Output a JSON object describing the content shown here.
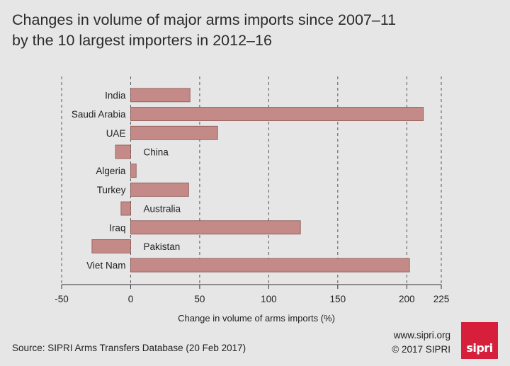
{
  "title_line1": "Changes in volume of major arms imports since 2007–11",
  "title_line2": "by the 10 largest importers in 2012–16",
  "source": "Source: SIPRI Arms Transfers Database (20 Feb 2017)",
  "website": "www.sipri.org",
  "copyright": "© 2017 SIPRI",
  "logo_text": "sipri",
  "colors": {
    "bar": "#c48a87",
    "bar_stroke": "#8a5552",
    "background": "#e6e6e6",
    "logo": "#d6203b"
  },
  "chart_data": {
    "type": "bar",
    "orientation": "horizontal",
    "categories": [
      "India",
      "Saudi Arabia",
      "UAE",
      "China",
      "Algeria",
      "Turkey",
      "Australia",
      "Iraq",
      "Pakistan",
      "Viet Nam"
    ],
    "values": [
      43,
      212,
      63,
      -11,
      4,
      42,
      -7,
      123,
      -28,
      202
    ],
    "xlabel": "Change in volume of arms imports (%)",
    "ylabel": "",
    "xlim": [
      -50,
      225
    ],
    "xticks": [
      -50,
      0,
      50,
      100,
      150,
      200,
      225
    ],
    "grid": "vertical dashed"
  }
}
